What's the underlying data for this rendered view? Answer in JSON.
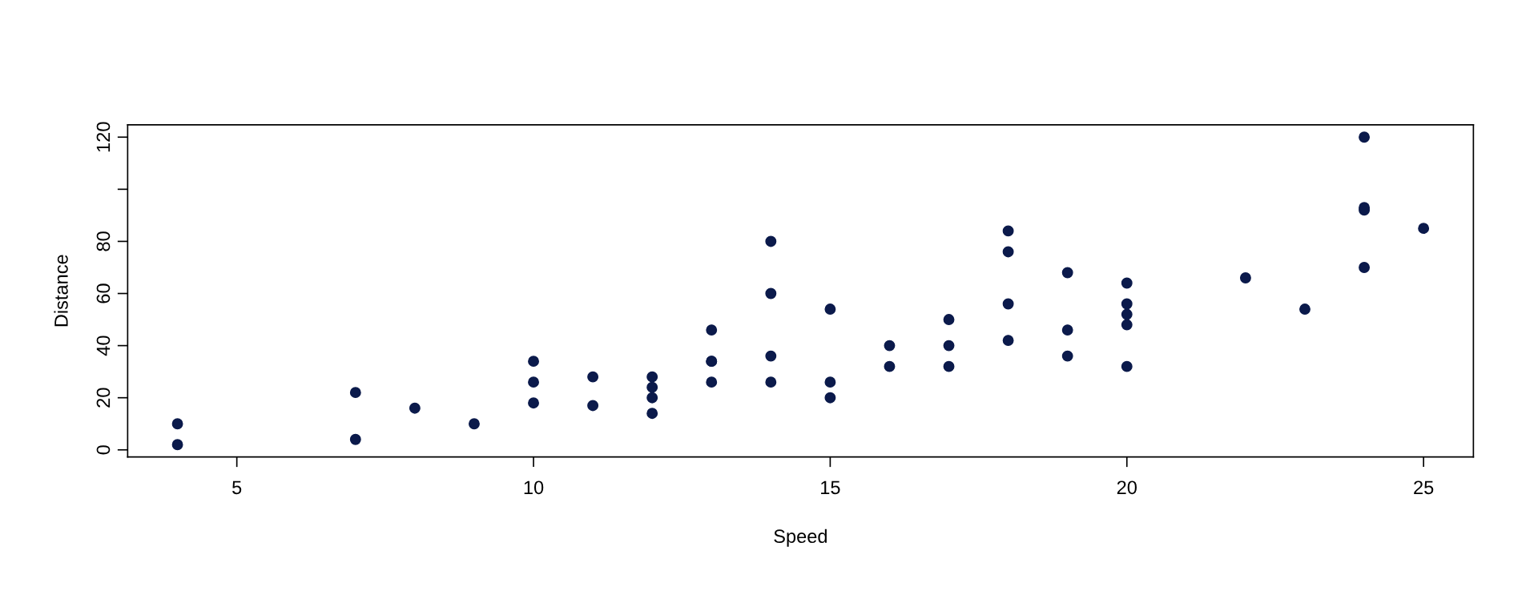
{
  "chart_data": {
    "type": "scatter",
    "xlabel": "Speed",
    "ylabel": "Distance",
    "x": [
      4,
      4,
      7,
      7,
      8,
      9,
      10,
      10,
      10,
      11,
      11,
      12,
      12,
      12,
      12,
      13,
      13,
      13,
      13,
      14,
      14,
      14,
      14,
      15,
      15,
      15,
      16,
      16,
      17,
      17,
      17,
      18,
      18,
      18,
      18,
      19,
      19,
      19,
      20,
      20,
      20,
      20,
      20,
      22,
      23,
      24,
      24,
      24,
      24,
      25
    ],
    "values": [
      2,
      10,
      4,
      22,
      16,
      10,
      18,
      26,
      34,
      17,
      28,
      14,
      20,
      24,
      28,
      26,
      34,
      34,
      46,
      26,
      36,
      60,
      80,
      20,
      26,
      54,
      32,
      40,
      32,
      40,
      50,
      42,
      56,
      76,
      84,
      36,
      46,
      68,
      32,
      48,
      52,
      56,
      64,
      66,
      54,
      70,
      92,
      93,
      120,
      85
    ],
    "color": "#0b1a4b",
    "marker": "circle",
    "xlim": [
      3.16,
      25.84
    ],
    "ylim": [
      -2.72,
      124.72
    ],
    "xticks": [
      5,
      10,
      15,
      20,
      25
    ],
    "yticks": [
      0,
      20,
      40,
      60,
      80,
      {
        "value": 100,
        "label": null
      },
      120
    ],
    "grid": false,
    "legend": false
  }
}
